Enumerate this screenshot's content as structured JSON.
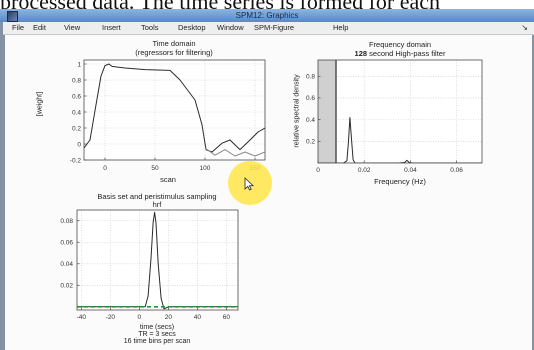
{
  "document": {
    "text": "processed data. The time series is formed for each"
  },
  "window": {
    "title": "SPM12: Graphics"
  },
  "menu": {
    "items": [
      "File",
      "Edit",
      "View",
      "Insert",
      "Tools",
      "Desktop",
      "Window",
      "SPM-Figure",
      "Help"
    ]
  },
  "icons": {
    "window": "matlab-figure-icon",
    "menu_overflow": "chevron-down-icon",
    "cursor": "mouse-pointer-icon"
  },
  "colors": {
    "titlebar": "#5a88c6",
    "highlight": "#ffe446",
    "stopband": "#d0d0d0",
    "sampling": "#1f9a2a",
    "line": "#2a2a2a"
  },
  "chart_data": [
    {
      "type": "line",
      "title": [
        "Time domain",
        "(regressors for filtering)"
      ],
      "xlabel": "scan",
      "ylabel": "[weight]",
      "xlim": [
        -21,
        160
      ],
      "ylim": [
        -0.2,
        1.05
      ],
      "xticks": [
        0,
        50,
        100,
        150
      ],
      "xticklabels": [
        "0",
        "50",
        "100",
        "150"
      ],
      "yticks": [
        -0.2,
        0,
        0.2,
        0.4,
        0.6,
        0.8,
        1
      ],
      "yticklabels": [
        "-0.2",
        "0",
        "0.2",
        "0.4",
        "0.6",
        "0.8",
        "1"
      ],
      "grid": true,
      "series": [
        {
          "x": [
            -21,
            -15,
            -9,
            -4,
            0,
            4,
            7,
            20,
            40,
            65,
            75,
            90,
            97,
            101,
            107,
            117,
            125,
            135,
            145,
            153,
            160
          ],
          "values": [
            -0.05,
            0.05,
            0.49,
            0.85,
            0.98,
            1.0,
            0.97,
            0.95,
            0.93,
            0.92,
            0.8,
            0.55,
            0.24,
            -0.07,
            -0.1,
            0.01,
            0.05,
            -0.07,
            0.05,
            0.15,
            0.2
          ],
          "color": "#2a2a2a"
        },
        {
          "x": [
            100,
            110,
            120,
            130,
            140,
            150,
            160
          ],
          "values": [
            -0.05,
            -0.14,
            -0.07,
            -0.15,
            -0.1,
            -0.15,
            -0.1
          ],
          "color": "#8a8a8a"
        }
      ]
    },
    {
      "type": "line",
      "title": [
        "Frequency domain"
      ],
      "subtitle": [
        "128",
        "second High-pass filter"
      ],
      "xlabel": "Frequency (Hz)",
      "ylabel": "relative spectral density",
      "xlim": [
        0,
        0.071
      ],
      "ylim": [
        0,
        0.95
      ],
      "xticks": [
        0,
        0.02,
        0.04,
        0.06
      ],
      "xticklabels": [
        "0",
        "0.02",
        "0.04",
        "0.06"
      ],
      "yticks": [
        0.2,
        0.4,
        0.6,
        0.8
      ],
      "yticklabels": [
        "0.2",
        "0.4",
        "0.6",
        "0.8"
      ],
      "grid": true,
      "cutoff_hz": 0.0078,
      "series": [
        {
          "x": [
            0,
            0.0078,
            0.011,
            0.0125,
            0.0132,
            0.0138,
            0.0145,
            0.0152,
            0.016,
            0.02,
            0.035,
            0.0375,
            0.0385,
            0.0395,
            0.041,
            0.05,
            0.071
          ],
          "values": [
            0,
            0,
            0,
            0.02,
            0.2,
            0.42,
            0.22,
            0.03,
            0,
            0,
            0,
            0.005,
            0.025,
            0.005,
            0,
            0,
            0
          ],
          "color": "#2a2a2a"
        }
      ]
    },
    {
      "type": "line",
      "title": [
        "Basis set and peristimulus sampling",
        "hrf"
      ],
      "xlabel": [
        "time (secs)",
        "TR = 3 secs",
        "16 time bins per scan"
      ],
      "xlim": [
        -43,
        68
      ],
      "ylim": [
        -0.003,
        0.09
      ],
      "xticks": [
        -40,
        -20,
        0,
        20,
        40,
        60
      ],
      "xticklabels": [
        "-40",
        "-20",
        "0",
        "20",
        "40",
        "60"
      ],
      "yticks": [
        0.02,
        0.04,
        0.06,
        0.08
      ],
      "yticklabels": [
        "0.02",
        "0.04",
        "0.06",
        "0.08"
      ],
      "grid": true,
      "series": [
        {
          "x": [
            -43,
            0,
            4,
            6,
            8,
            9.5,
            10.5,
            11.5,
            13,
            15,
            17,
            20,
            68
          ],
          "values": [
            0,
            0,
            0,
            0.01,
            0.045,
            0.078,
            0.088,
            0.078,
            0.04,
            0.008,
            -0.002,
            0,
            0
          ],
          "color": "#2a2a2a"
        },
        {
          "x": [
            -43,
            68
          ],
          "values": [
            0,
            0
          ],
          "color": "#1f9a2a",
          "style": "dashed"
        }
      ]
    }
  ]
}
